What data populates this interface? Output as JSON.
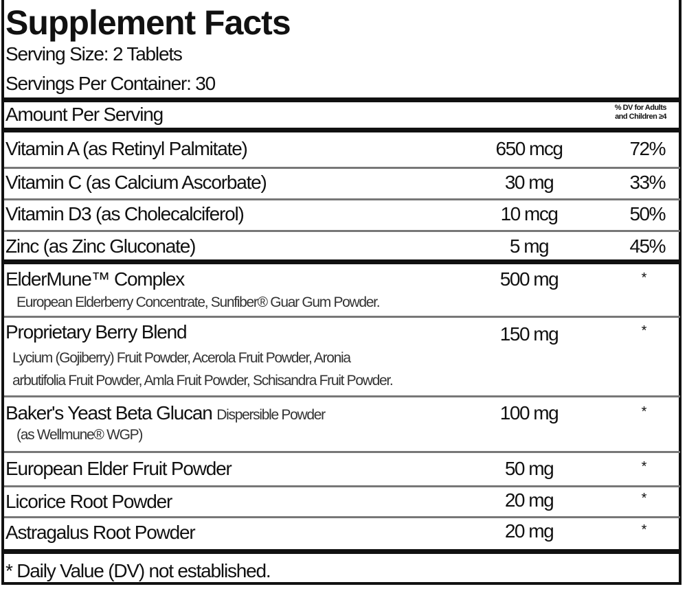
{
  "title": "Supplement Facts",
  "serving_size": "Serving Size: 2 Tablets",
  "servings_per_container": "Servings Per Container: 30",
  "header": {
    "amount_per_serving": "Amount Per Serving",
    "dv_line1": "% DV for Adults",
    "dv_line2": "and Children ≥4"
  },
  "vitamins": [
    {
      "name": "Vitamin A (as Retinyl Palmitate)",
      "amount": "650 mcg",
      "dv": "72%"
    },
    {
      "name": "Vitamin C (as Calcium Ascorbate)",
      "amount": "30 mg",
      "dv": "33%"
    },
    {
      "name": "Vitamin D3 (as Cholecalciferol)",
      "amount": "10 mcg",
      "dv": "50%"
    },
    {
      "name": "Zinc (as Zinc Gluconate)",
      "amount": "5 mg",
      "dv": "45%"
    }
  ],
  "ingredients": [
    {
      "name": "ElderMune™ Complex",
      "amount": "500 mg",
      "dv": "*",
      "sub": [
        "European Elderberry Concentrate, Sunfiber® Guar Gum Powder."
      ]
    },
    {
      "name": "Proprietary Berry Blend",
      "amount": "150 mg",
      "dv": "*",
      "sub": [
        "Lycium (Gojiberry) Fruit Powder, Acerola Fruit Powder, Aronia",
        "arbutifolia Fruit Powder, Amla Fruit Powder, Schisandra Fruit Powder."
      ]
    },
    {
      "name": "Baker's Yeast Beta Glucan",
      "name_suffix": "Dispersible Powder",
      "amount": "100 mg",
      "dv": "*",
      "sub": [
        "(as Wellmune® WGP)"
      ]
    },
    {
      "name": "European Elder Fruit Powder",
      "amount": "50 mg",
      "dv": "*"
    },
    {
      "name": "Licorice Root Powder",
      "amount": "20 mg",
      "dv": "*"
    },
    {
      "name": "Astragalus Root Powder",
      "amount": "20 mg",
      "dv": "*"
    }
  ],
  "footnote": "* Daily Value (DV) not established."
}
